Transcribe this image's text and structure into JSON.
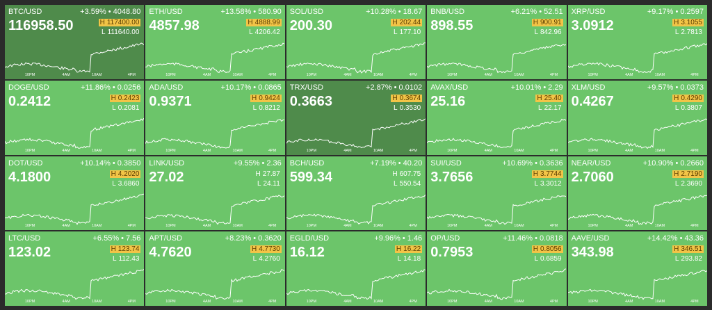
{
  "high_label": "H",
  "low_label": "L",
  "separator": "•",
  "time_labels": [
    "10PM",
    "4AM",
    "10AM",
    "4PM"
  ],
  "tiles": [
    {
      "pair": "BTC/USD",
      "change_pct": "+3.59%",
      "change": "4048.80",
      "price": "116958.50",
      "high": "117400.00",
      "low": "111640.00",
      "high_highlight": true,
      "color": "#4f8b4b"
    },
    {
      "pair": "ETH/USD",
      "change_pct": "+13.58%",
      "change": "580.90",
      "price": "4857.98",
      "high": "4888.99",
      "low": "4206.42",
      "high_highlight": true,
      "color": "#6cc56a"
    },
    {
      "pair": "SOL/USD",
      "change_pct": "+10.28%",
      "change": "18.67",
      "price": "200.30",
      "high": "202.44",
      "low": "177.10",
      "high_highlight": true,
      "color": "#6cc56a"
    },
    {
      "pair": "BNB/USD",
      "change_pct": "+6.21%",
      "change": "52.51",
      "price": "898.55",
      "high": "900.91",
      "low": "842.96",
      "high_highlight": true,
      "color": "#6cc56a"
    },
    {
      "pair": "XRP/USD",
      "change_pct": "+9.17%",
      "change": "0.2597",
      "price": "3.0912",
      "high": "3.1055",
      "low": "2.7813",
      "high_highlight": true,
      "color": "#6cc56a"
    },
    {
      "pair": "DOGE/USD",
      "change_pct": "+11.86%",
      "change": "0.0256",
      "price": "0.2412",
      "high": "0.2423",
      "low": "0.2081",
      "high_highlight": true,
      "color": "#6cc56a"
    },
    {
      "pair": "ADA/USD",
      "change_pct": "+10.17%",
      "change": "0.0865",
      "price": "0.9371",
      "high": "0.9424",
      "low": "0.8212",
      "high_highlight": true,
      "color": "#6cc56a"
    },
    {
      "pair": "TRX/USD",
      "change_pct": "+2.87%",
      "change": "0.0102",
      "price": "0.3663",
      "high": "0.3674",
      "low": "0.3530",
      "high_highlight": true,
      "color": "#4f8b4b"
    },
    {
      "pair": "AVAX/USD",
      "change_pct": "+10.01%",
      "change": "2.29",
      "price": "25.16",
      "high": "25.40",
      "low": "22.17",
      "high_highlight": true,
      "color": "#6cc56a"
    },
    {
      "pair": "XLM/USD",
      "change_pct": "+9.57%",
      "change": "0.0373",
      "price": "0.4267",
      "high": "0.4290",
      "low": "0.3807",
      "high_highlight": true,
      "color": "#6cc56a"
    },
    {
      "pair": "DOT/USD",
      "change_pct": "+10.14%",
      "change": "0.3850",
      "price": "4.1800",
      "high": "4.2020",
      "low": "3.6860",
      "high_highlight": true,
      "color": "#6cc56a"
    },
    {
      "pair": "LINK/USD",
      "change_pct": "+9.55%",
      "change": "2.36",
      "price": "27.02",
      "high": "27.87",
      "low": "24.11",
      "high_highlight": false,
      "color": "#6cc56a"
    },
    {
      "pair": "BCH/USD",
      "change_pct": "+7.19%",
      "change": "40.20",
      "price": "599.34",
      "high": "607.75",
      "low": "550.54",
      "high_highlight": false,
      "color": "#6cc56a"
    },
    {
      "pair": "SUI/USD",
      "change_pct": "+10.69%",
      "change": "0.3636",
      "price": "3.7656",
      "high": "3.7744",
      "low": "3.3012",
      "high_highlight": true,
      "color": "#6cc56a"
    },
    {
      "pair": "NEAR/USD",
      "change_pct": "+10.90%",
      "change": "0.2660",
      "price": "2.7060",
      "high": "2.7190",
      "low": "2.3690",
      "high_highlight": true,
      "color": "#6cc56a"
    },
    {
      "pair": "LTC/USD",
      "change_pct": "+6.55%",
      "change": "7.56",
      "price": "123.02",
      "high": "123.74",
      "low": "112.43",
      "high_highlight": true,
      "color": "#6cc56a"
    },
    {
      "pair": "APT/USD",
      "change_pct": "+8.23%",
      "change": "0.3620",
      "price": "4.7620",
      "high": "4.7730",
      "low": "4.2760",
      "high_highlight": true,
      "color": "#6cc56a"
    },
    {
      "pair": "EGLD/USD",
      "change_pct": "+9.96%",
      "change": "1.46",
      "price": "16.12",
      "high": "16.22",
      "low": "14.18",
      "high_highlight": true,
      "color": "#6cc56a"
    },
    {
      "pair": "OP/USD",
      "change_pct": "+11.46%",
      "change": "0.0818",
      "price": "0.7953",
      "high": "0.8056",
      "low": "0.6859",
      "high_highlight": true,
      "color": "#6cc56a"
    },
    {
      "pair": "AAVE/USD",
      "change_pct": "+14.42%",
      "change": "43.36",
      "price": "343.98",
      "high": "346.51",
      "low": "293.82",
      "high_highlight": true,
      "color": "#6cc56a"
    }
  ]
}
